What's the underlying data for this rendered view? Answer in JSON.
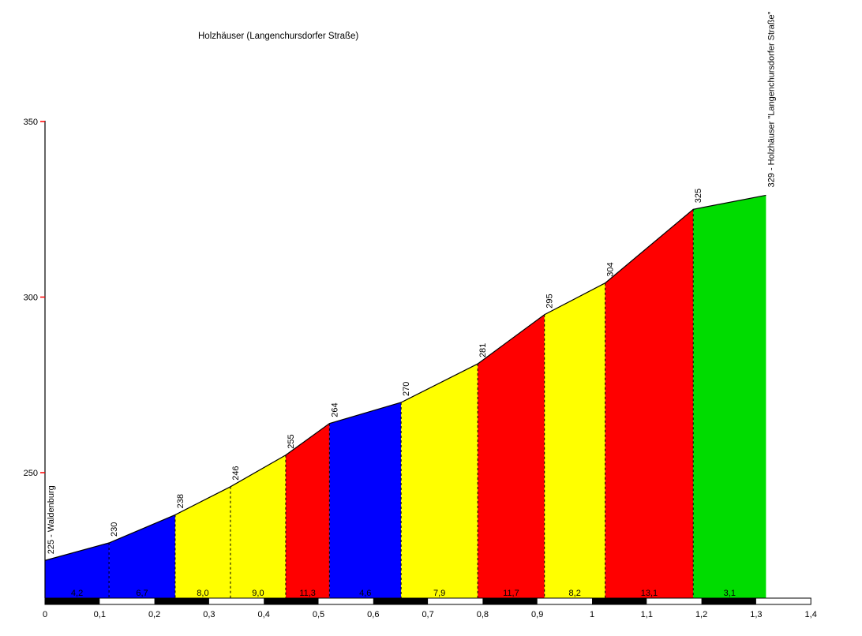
{
  "chart_data": {
    "type": "area",
    "title": "Holzhäuser (Langenchursdorfer Straße)",
    "x_unit": "km",
    "y_unit": "m",
    "x_range": [
      0,
      1.4
    ],
    "x_tick_interval_km": 0.1,
    "x_tick_labels": [
      "0",
      "0,1",
      "0,2",
      "0,3",
      "0,4",
      "0,5",
      "0,6",
      "0,7",
      "0,8",
      "0,9",
      "1",
      "1,1",
      "1,2",
      "1,3",
      "1,4"
    ],
    "y_tick_values": [
      250,
      300,
      350
    ],
    "y_tick_labels": [
      "250",
      "300",
      "350"
    ],
    "grid": false,
    "legend": "none",
    "start_label": "225 - Waldenburg",
    "end_label": "329 - Holzhäuser \"Langenchursdorfer Straße\"",
    "start_elevation_m": 225,
    "end_elevation_m": 329,
    "total_distance_km": 1.318,
    "points": [
      {
        "km": 0.0,
        "elev": 225
      },
      {
        "km": 0.117,
        "elev": 230,
        "label": "230"
      },
      {
        "km": 0.238,
        "elev": 238,
        "label": "238"
      },
      {
        "km": 0.339,
        "elev": 246,
        "label": "246"
      },
      {
        "km": 0.44,
        "elev": 255,
        "label": "255"
      },
      {
        "km": 0.52,
        "elev": 264,
        "label": "264"
      },
      {
        "km": 0.651,
        "elev": 270,
        "label": "270"
      },
      {
        "km": 0.791,
        "elev": 281,
        "label": "281"
      },
      {
        "km": 0.913,
        "elev": 295,
        "label": "295"
      },
      {
        "km": 1.024,
        "elev": 304,
        "label": "304"
      },
      {
        "km": 1.185,
        "elev": 325,
        "label": "325"
      },
      {
        "km": 1.318,
        "elev": 329
      }
    ],
    "segments": [
      {
        "gradient_label": "4,2",
        "gradient_percent": 4.2,
        "color": "#0000FF"
      },
      {
        "gradient_label": "6,7",
        "gradient_percent": 6.7,
        "color": "#0000FF"
      },
      {
        "gradient_label": "8,0",
        "gradient_percent": 8.0,
        "color": "#FFFF00"
      },
      {
        "gradient_label": "9,0",
        "gradient_percent": 9.0,
        "color": "#FFFF00"
      },
      {
        "gradient_label": "11,3",
        "gradient_percent": 11.3,
        "color": "#FF0000"
      },
      {
        "gradient_label": "4,6",
        "gradient_percent": 4.6,
        "color": "#0000FF"
      },
      {
        "gradient_label": "7,9",
        "gradient_percent": 7.9,
        "color": "#FFFF00"
      },
      {
        "gradient_label": "11,7",
        "gradient_percent": 11.7,
        "color": "#FF0000"
      },
      {
        "gradient_label": "8,2",
        "gradient_percent": 8.2,
        "color": "#FFFF00"
      },
      {
        "gradient_label": "13,1",
        "gradient_percent": 13.1,
        "color": "#FF0000"
      },
      {
        "gradient_label": "3,1",
        "gradient_percent": 3.1,
        "color": "#00DC00"
      }
    ],
    "scalebar": {
      "interval_km": 0.1,
      "block_count": 14,
      "colors": [
        "#000000",
        "#FFFFFF"
      ]
    },
    "colors": {
      "axis_line": "#000000",
      "axis_tick": "#FF0000",
      "profile_line": "#000000",
      "boundary_dash": "#000000",
      "background": "#FFFFFF",
      "label_text": "#000000"
    }
  }
}
